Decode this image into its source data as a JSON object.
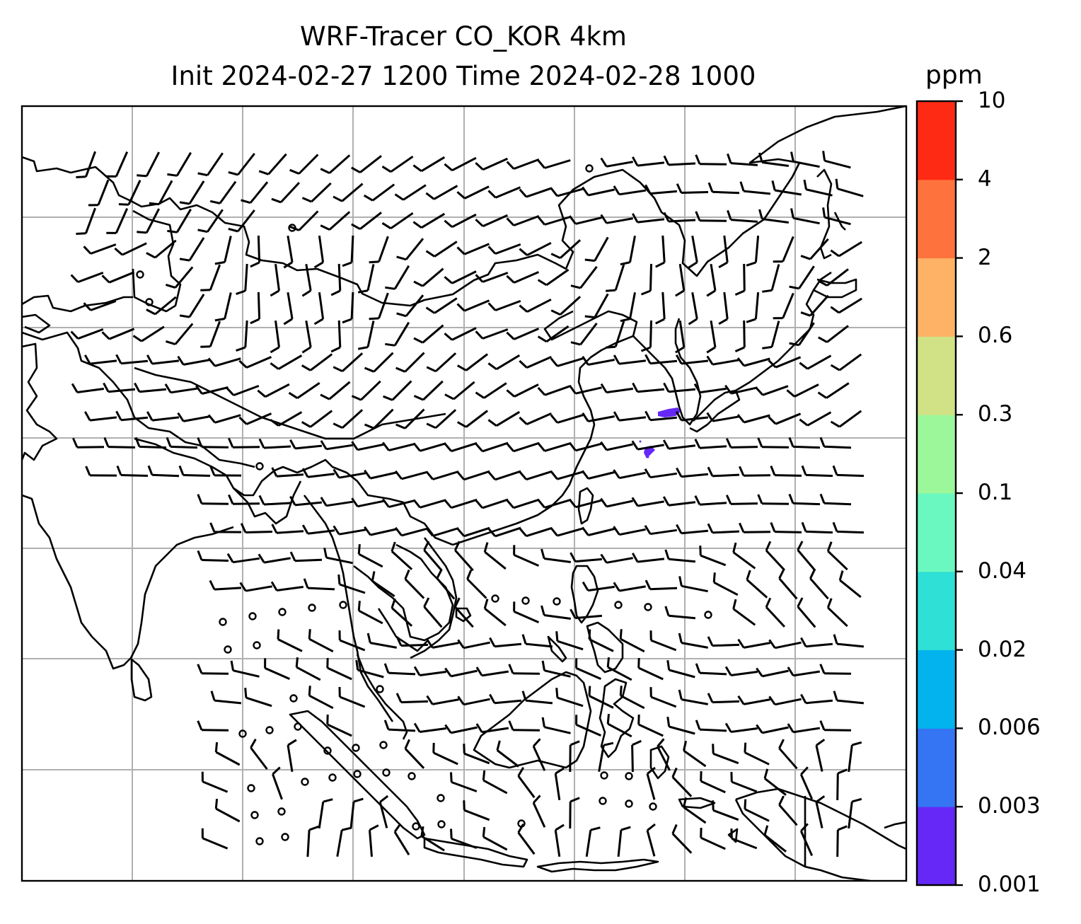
{
  "title": {
    "line1": "WRF-Tracer CO_KOR 4km",
    "line2": "Init 2024-02-27 1200 Time 2024-02-28 1000"
  },
  "colorbar": {
    "unit": "ppm",
    "levels": [
      "0.001",
      "0.003",
      "0.006",
      "0.02",
      "0.04",
      "0.1",
      "0.3",
      "0.6",
      "2",
      "4",
      "10"
    ],
    "colors": [
      "#6528f7",
      "#3574f3",
      "#02b3ee",
      "#2ee0d6",
      "#6af8c0",
      "#9cf79a",
      "#d0e285",
      "#fdb265",
      "#fe723d",
      "#ff2a14"
    ]
  },
  "map": {
    "gridline_color": "#b0b0b0",
    "coastline_color": "#000000",
    "plume_color": "#6528f7",
    "barb_color": "#000000"
  }
}
